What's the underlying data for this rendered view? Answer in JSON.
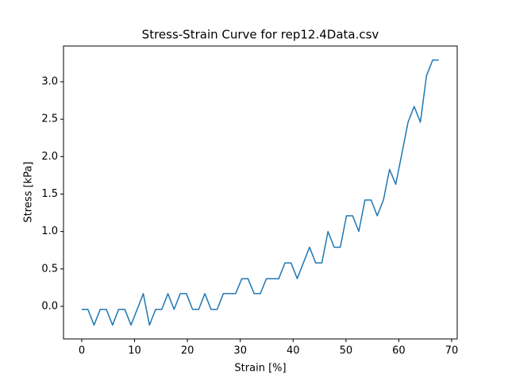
{
  "chart_data": {
    "type": "line",
    "title": "Stress-Strain Curve for rep12.4Data.csv",
    "xlabel": "Strain [%]",
    "ylabel": "Stress [kPa]",
    "x": [
      0,
      1.17,
      2.33,
      3.5,
      4.66,
      5.83,
      6.99,
      8.16,
      9.32,
      10.49,
      11.65,
      12.82,
      13.98,
      15.15,
      16.31,
      17.48,
      18.64,
      19.81,
      20.97,
      22.14,
      23.3,
      24.47,
      25.63,
      26.8,
      27.96,
      29.13,
      30.29,
      31.46,
      32.62,
      33.79,
      34.95,
      36.12,
      37.28,
      38.45,
      39.61,
      40.78,
      41.94,
      43.11,
      44.27,
      45.44,
      46.6,
      47.77,
      48.93,
      50.1,
      51.26,
      52.43,
      53.59,
      54.76,
      55.92,
      57.09,
      58.25,
      59.42,
      60.58,
      61.75,
      62.91,
      64.08,
      65.24,
      66.41,
      67.57
    ],
    "series": [
      {
        "color": "#1f77b4",
        "values": [
          -0.04,
          -0.04,
          -0.25,
          -0.04,
          -0.04,
          -0.25,
          -0.04,
          -0.04,
          -0.25,
          -0.04,
          0.17,
          -0.25,
          -0.04,
          -0.04,
          0.17,
          -0.04,
          0.17,
          0.17,
          -0.04,
          -0.04,
          0.17,
          -0.04,
          -0.04,
          0.17,
          0.17,
          0.17,
          0.37,
          0.37,
          0.17,
          0.17,
          0.37,
          0.37,
          0.37,
          0.58,
          0.58,
          0.37,
          0.58,
          0.79,
          0.58,
          0.58,
          1.0,
          0.79,
          0.79,
          1.21,
          1.21,
          1.0,
          1.42,
          1.42,
          1.21,
          1.42,
          1.83,
          1.63,
          2.04,
          2.46,
          2.67,
          2.46,
          3.08,
          3.29,
          3.29
        ]
      }
    ],
    "xlim": [
      -3.45,
      71.05
    ],
    "ylim": [
      -0.435,
      3.477
    ],
    "xticks": [
      0,
      10,
      20,
      30,
      40,
      50,
      60,
      70
    ],
    "yticks": [
      {
        "value": 0,
        "label": "0.0"
      },
      0.5,
      {
        "value": 1,
        "label": "1.0"
      },
      1.5,
      {
        "value": 2,
        "label": "2.0"
      },
      2.5,
      {
        "value": 3,
        "label": "3.0"
      }
    ]
  }
}
